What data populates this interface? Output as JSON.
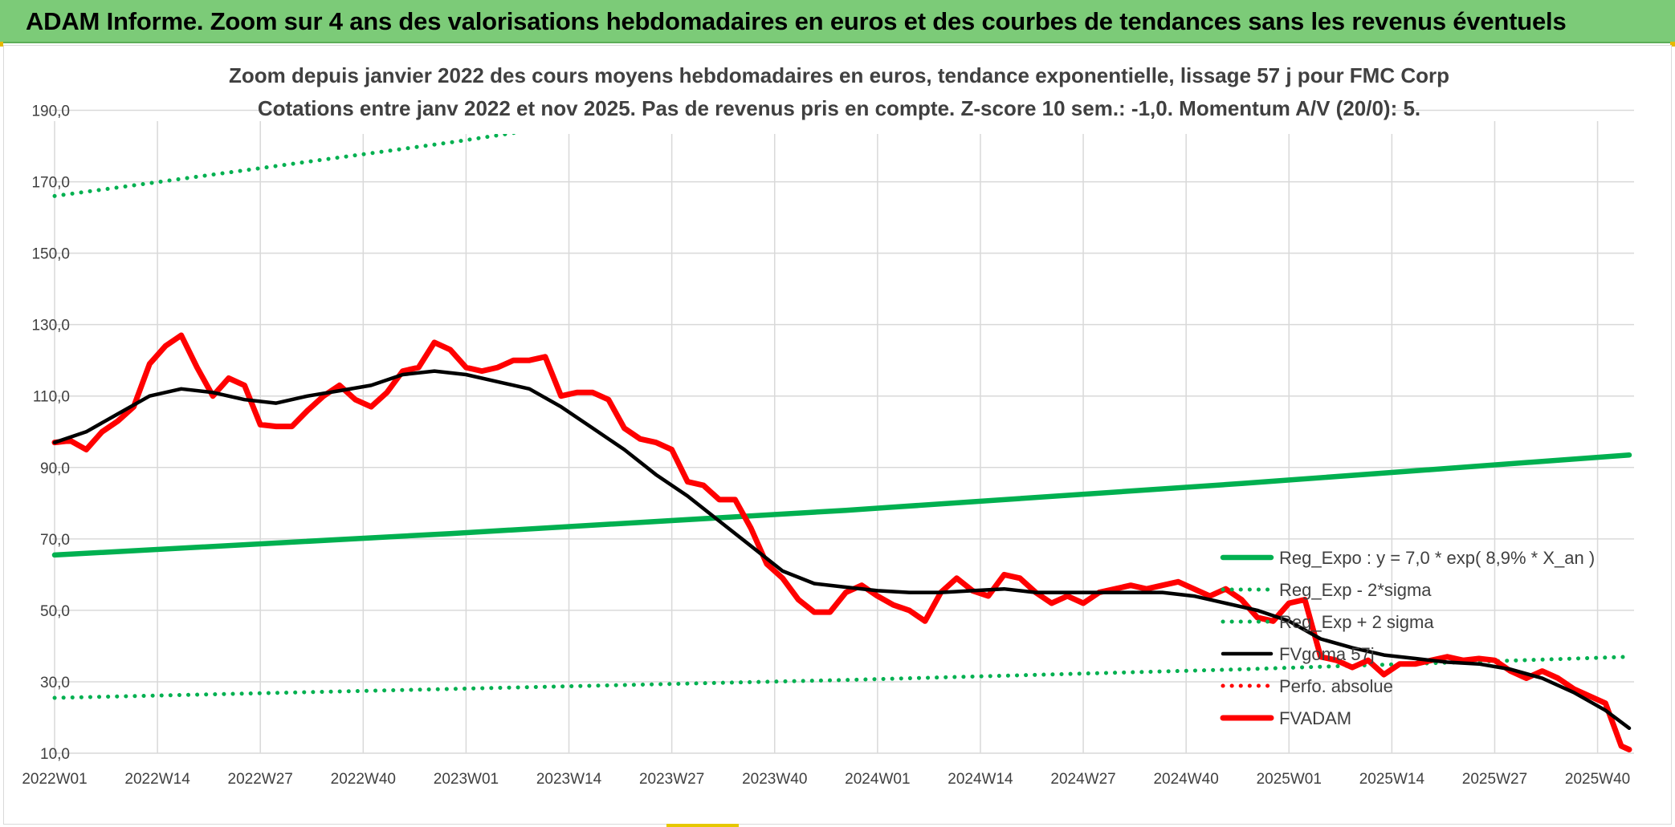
{
  "banner": {
    "title": "ADAM Informe. Zoom sur 4 ans des valorisations hebdomadaires en euros et des courbes de tendances sans les revenus éventuels"
  },
  "colors": {
    "banner_bg": "#7ccb78",
    "trend_green": "#00b050",
    "fvadam_red": "#ff0000",
    "fvgoma_black": "#000000",
    "perfo_red": "#ff0000",
    "grid": "#d9d9d9",
    "text": "#404040"
  },
  "chart_data": {
    "type": "line",
    "title": "Zoom depuis janvier 2022 des cours moyens hebdomadaires en euros, tendance exponentielle, lissage 57 j pour FMC Corp",
    "subtitle": "Cotations entre janv 2022 et nov 2025. Pas de revenus pris en compte. Z-score 10 sem.: -1,0. Momentum A/V (20/0): 5.",
    "xlabel": "",
    "ylabel": "",
    "ylim": [
      10,
      200
    ],
    "yticks": [
      "190,0",
      "170,0",
      "150,0",
      "130,0",
      "110,0",
      "90,0",
      "70,0",
      "50,0",
      "30,0",
      "10,0"
    ],
    "ytick_values": [
      190,
      170,
      150,
      130,
      110,
      90,
      70,
      50,
      30,
      10
    ],
    "x_week_index_range": [
      0,
      199
    ],
    "xticks": [
      "2022W01",
      "2022W14",
      "2022W27",
      "2022W40",
      "2023W01",
      "2023W14",
      "2023W27",
      "2023W40",
      "2024W01",
      "2024W14",
      "2024W27",
      "2024W40",
      "2025W01",
      "2025W14",
      "2025W27",
      "2025W40"
    ],
    "xtick_positions": [
      0,
      13,
      26,
      39,
      52,
      65,
      78,
      91,
      104,
      117,
      130,
      143,
      156,
      169,
      182,
      195
    ],
    "grid": true,
    "legend_position": "right",
    "series": [
      {
        "name": "Reg_Expo : y = 7,0 * exp( 8,9% *  X_an )",
        "style": "solid",
        "color": "#00b050",
        "x": [
          0,
          50,
          100,
          150,
          199
        ],
        "y": [
          65.5,
          71.5,
          78,
          85.5,
          93.5
        ]
      },
      {
        "name": "Reg_Exp - 2*sigma",
        "style": "dotted",
        "color": "#00b050",
        "x": [
          0,
          50,
          100,
          150,
          199
        ],
        "y": [
          25.5,
          28,
          30.5,
          33.5,
          37
        ]
      },
      {
        "name": "Reg_Exp + 2 sigma",
        "style": "dotted",
        "color": "#00b050",
        "x": [
          0,
          50,
          80,
          110,
          150,
          199
        ],
        "y": [
          166,
          181,
          191,
          201,
          201,
          201
        ]
      },
      {
        "name": "FVgoma 57j",
        "style": "solid",
        "color": "#000000",
        "x": [
          0,
          4,
          8,
          12,
          16,
          20,
          24,
          28,
          32,
          36,
          40,
          44,
          48,
          52,
          56,
          60,
          64,
          68,
          72,
          76,
          80,
          84,
          88,
          92,
          96,
          100,
          104,
          108,
          112,
          116,
          120,
          124,
          128,
          132,
          136,
          140,
          144,
          148,
          152,
          156,
          160,
          164,
          168,
          172,
          176,
          180,
          184,
          188,
          192,
          196,
          199
        ],
        "y": [
          97,
          100,
          105,
          110,
          112,
          111,
          109,
          108,
          110,
          111.5,
          113,
          116,
          117,
          116,
          114,
          112,
          107,
          101,
          95,
          88,
          82,
          75,
          68,
          61,
          57.5,
          56.5,
          55.5,
          55,
          55,
          55.5,
          56,
          55,
          55,
          55,
          55,
          55,
          54,
          52,
          50,
          47,
          42,
          39.5,
          37.5,
          36.5,
          35.5,
          35,
          33.5,
          31,
          27,
          22,
          17
        ]
      },
      {
        "name": "Perfo. absolue",
        "style": "dotted",
        "color": "#ff0000",
        "x": [],
        "y": []
      },
      {
        "name": "FVADAM",
        "style": "solid",
        "color": "#ff0000",
        "x": [
          0,
          2,
          4,
          6,
          8,
          10,
          12,
          14,
          16,
          18,
          20,
          22,
          24,
          26,
          28,
          30,
          32,
          34,
          36,
          38,
          40,
          42,
          44,
          46,
          48,
          50,
          52,
          54,
          56,
          58,
          60,
          62,
          64,
          66,
          68,
          70,
          72,
          74,
          76,
          78,
          80,
          82,
          84,
          86,
          88,
          90,
          92,
          94,
          96,
          98,
          100,
          102,
          104,
          106,
          108,
          110,
          112,
          114,
          116,
          118,
          120,
          122,
          124,
          126,
          128,
          130,
          132,
          134,
          136,
          138,
          140,
          142,
          144,
          146,
          148,
          150,
          152,
          154,
          156,
          158,
          160,
          162,
          164,
          166,
          168,
          170,
          172,
          174,
          176,
          178,
          180,
          182,
          184,
          186,
          188,
          190,
          192,
          194,
          196,
          198,
          199
        ],
        "y": [
          97,
          97.5,
          95,
          100,
          103,
          107,
          119,
          124,
          127,
          118,
          110,
          115,
          113,
          102,
          101.5,
          101.5,
          106,
          110,
          113,
          109,
          107,
          111,
          117,
          118,
          125,
          123,
          118,
          117,
          118,
          120,
          120,
          121,
          110,
          111,
          111,
          109,
          101,
          98,
          97,
          95,
          86,
          85,
          81,
          81,
          73,
          63,
          59,
          53,
          49.5,
          49.5,
          55,
          57,
          54,
          51.5,
          50,
          47,
          55,
          59,
          55.5,
          54,
          60,
          59,
          55,
          52,
          54,
          52,
          55,
          56,
          57,
          56,
          57,
          58,
          56,
          54,
          56,
          53,
          48,
          47,
          52,
          53,
          37,
          36,
          34,
          36,
          32,
          35,
          35,
          36,
          37,
          36,
          36.5,
          36,
          33,
          31,
          33,
          31,
          28,
          26,
          24,
          12,
          11
        ]
      }
    ]
  }
}
